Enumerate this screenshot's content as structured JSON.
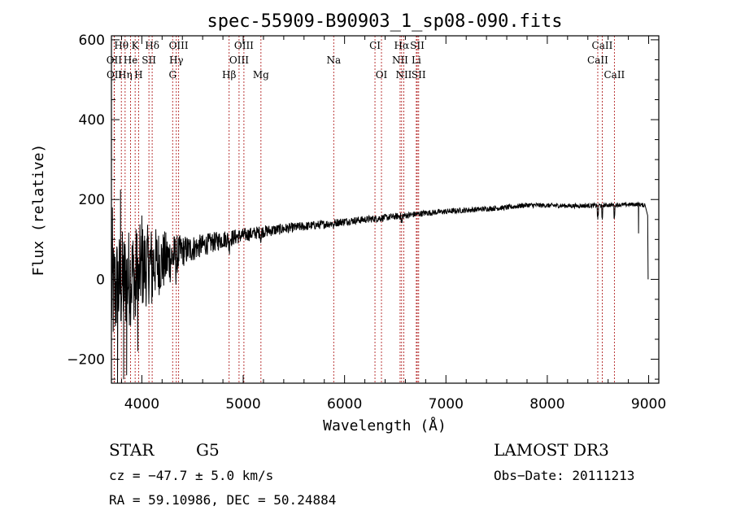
{
  "chart_data": {
    "type": "line",
    "title": "spec-55909-B90903_1_sp08-090.fits",
    "xlabel": "Wavelength (Å)",
    "ylabel": "Flux (relative)",
    "xlim": [
      3700,
      9100
    ],
    "ylim": [
      -260,
      610
    ],
    "xticks": [
      4000,
      5000,
      6000,
      7000,
      8000,
      9000
    ],
    "yticks": [
      -200,
      0,
      200,
      400,
      600
    ],
    "series": [
      {
        "name": "flux",
        "color": "#000000",
        "continuum": [
          [
            3700,
            -40
          ],
          [
            3800,
            -10
          ],
          [
            3900,
            10
          ],
          [
            4000,
            30
          ],
          [
            4100,
            40
          ],
          [
            4200,
            45
          ],
          [
            4300,
            55
          ],
          [
            4400,
            70
          ],
          [
            4600,
            85
          ],
          [
            4800,
            100
          ],
          [
            5000,
            110
          ],
          [
            5200,
            120
          ],
          [
            5500,
            130
          ],
          [
            5800,
            138
          ],
          [
            6000,
            145
          ],
          [
            6300,
            152
          ],
          [
            6600,
            160
          ],
          [
            6800,
            166
          ],
          [
            7000,
            170
          ],
          [
            7300,
            175
          ],
          [
            7600,
            180
          ],
          [
            7800,
            186
          ],
          [
            8000,
            185
          ],
          [
            8300,
            184
          ],
          [
            8600,
            186
          ],
          [
            8900,
            188
          ],
          [
            8960,
            185
          ]
        ],
        "noise": [
          [
            3700,
            150
          ],
          [
            4000,
            110
          ],
          [
            4200,
            80
          ],
          [
            4400,
            40
          ],
          [
            4600,
            28
          ],
          [
            5000,
            18
          ],
          [
            5500,
            12
          ],
          [
            6000,
            10
          ],
          [
            7000,
            7
          ],
          [
            8000,
            6
          ],
          [
            8960,
            5
          ]
        ],
        "features": [
          {
            "x": 3710,
            "y": 180
          },
          {
            "x": 3790,
            "y": 225
          },
          {
            "x": 3760,
            "y": -260
          },
          {
            "x": 3820,
            "y": -250
          },
          {
            "x": 3850,
            "y": -240
          },
          {
            "x": 3960,
            "y": -180
          },
          {
            "x": 4000,
            "y": 160
          },
          {
            "x": 6560,
            "y": 150
          },
          {
            "x": 8498,
            "y": 150
          },
          {
            "x": 8542,
            "y": 150
          },
          {
            "x": 8662,
            "y": 155
          },
          {
            "x": 8900,
            "y": 115
          },
          {
            "x": 8960,
            "y": 190
          },
          {
            "x": 8990,
            "y": 160
          },
          {
            "x": 8995,
            "y": 0
          }
        ]
      }
    ],
    "spectral_lines": [
      {
        "label": "Hθ",
        "x": 3798,
        "row": 0
      },
      {
        "label": "K",
        "x": 3934,
        "row": 0
      },
      {
        "label": "Hδ",
        "x": 4102,
        "row": 0
      },
      {
        "label": "OIII",
        "x": 4363,
        "row": 0
      },
      {
        "label": "OIII",
        "x": 5007,
        "row": 0
      },
      {
        "label": "CI",
        "x": 6300,
        "row": 0
      },
      {
        "label": "Hα",
        "x": 6563,
        "row": 0
      },
      {
        "label": "SII",
        "x": 6717,
        "row": 0
      },
      {
        "label": "CaII",
        "x": 8542,
        "row": 0
      },
      {
        "label": "OII",
        "x": 3727,
        "row": 1
      },
      {
        "label": "He",
        "x": 3889,
        "row": 1
      },
      {
        "label": "SII",
        "x": 4070,
        "row": 1
      },
      {
        "label": "Hγ",
        "x": 4340,
        "row": 1
      },
      {
        "label": "OIII",
        "x": 4959,
        "row": 1
      },
      {
        "label": "Na",
        "x": 5893,
        "row": 1
      },
      {
        "label": "NII",
        "x": 6548,
        "row": 1
      },
      {
        "label": "Li",
        "x": 6708,
        "row": 1
      },
      {
        "label": "CaII",
        "x": 8498,
        "row": 1
      },
      {
        "label": "OII",
        "x": 3729,
        "row": 2
      },
      {
        "label": "Hη",
        "x": 3835,
        "row": 2
      },
      {
        "label": "H",
        "x": 3968,
        "row": 2
      },
      {
        "label": "G",
        "x": 4304,
        "row": 2
      },
      {
        "label": "Hβ",
        "x": 4861,
        "row": 2
      },
      {
        "label": "Mg",
        "x": 5175,
        "row": 2
      },
      {
        "label": "OI",
        "x": 6364,
        "row": 2
      },
      {
        "label": "NII",
        "x": 6584,
        "row": 2
      },
      {
        "label": "SII",
        "x": 6731,
        "row": 2
      },
      {
        "label": "CaII",
        "x": 8662,
        "row": 2
      }
    ],
    "line_color": "#b22222"
  },
  "info": {
    "class": "STAR",
    "subclass": "G5",
    "survey": "LAMOST DR3",
    "cz": "cz = −47.7 ± 5.0 km/s",
    "obs_date": "Obs−Date: 20111213",
    "radec": "RA =  59.10986, DEC =  50.24884"
  }
}
